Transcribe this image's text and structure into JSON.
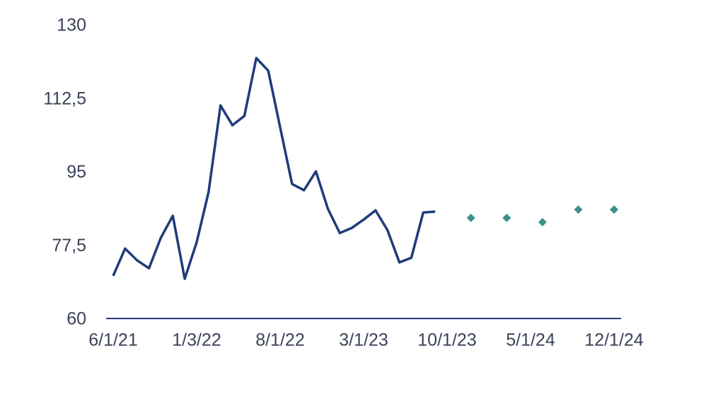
{
  "chart_data": {
    "type": "line",
    "categories": [
      "6/1/21",
      null,
      null,
      null,
      null,
      null,
      null,
      "1/3/22",
      null,
      null,
      null,
      null,
      null,
      null,
      "8/1/22",
      null,
      null,
      null,
      null,
      null,
      null,
      "3/1/23",
      null,
      null,
      null,
      null,
      null,
      null,
      "10/1/23",
      null,
      null,
      null,
      null,
      null,
      null,
      "5/1/24",
      null,
      null,
      null,
      null,
      null,
      null,
      "12/1/24"
    ],
    "series": [
      {
        "mode": "line",
        "color": "#1f3b7a",
        "values": [
          70.5,
          77.0,
          74.2,
          72.3,
          79.6,
          84.8,
          69.8,
          78.5,
          90.5,
          111.1,
          106.4,
          108.6,
          122.4,
          119.4,
          105.9,
          92.4,
          90.9,
          95.4,
          86.5,
          80.7,
          81.9,
          83.9,
          86.1,
          81.4,
          73.7,
          74.8,
          85.6,
          85.8,
          null,
          null,
          null,
          null,
          null,
          null,
          null,
          null,
          null,
          null,
          null,
          null,
          null,
          null,
          null
        ]
      },
      {
        "mode": "markers",
        "color": "#3d8f8a",
        "values": [
          null,
          null,
          null,
          null,
          null,
          null,
          null,
          null,
          null,
          null,
          null,
          null,
          null,
          null,
          null,
          null,
          null,
          null,
          null,
          null,
          null,
          null,
          null,
          null,
          null,
          null,
          null,
          null,
          null,
          null,
          84.3,
          null,
          null,
          84.3,
          null,
          null,
          83.3,
          null,
          null,
          86.3,
          null,
          null,
          86.3
        ]
      }
    ],
    "ylim": [
      60,
      130
    ],
    "yticks": [
      60,
      {
        "value": 77.5,
        "label": "77,5"
      },
      95,
      {
        "value": 112.5,
        "label": "112,5"
      },
      130
    ],
    "axis_color": "#1f3b7a"
  }
}
